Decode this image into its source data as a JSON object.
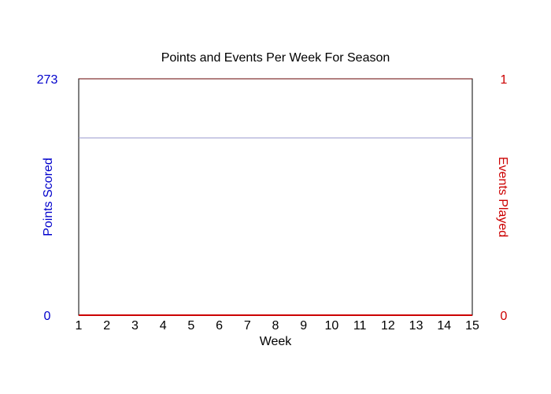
{
  "chart_data": {
    "type": "line",
    "title": "Points and Events Per Week For Season",
    "xlabel": "Week",
    "ylabel_left": "Points Scored",
    "ylabel_right": "Events Played",
    "x": [
      1,
      2,
      3,
      4,
      5,
      6,
      7,
      8,
      9,
      10,
      11,
      12,
      13,
      14,
      15
    ],
    "x_tick_labels": [
      "1",
      "2",
      "3",
      "4",
      "5",
      "6",
      "7",
      "8",
      "9",
      "10",
      "11",
      "12",
      "13",
      "14",
      "15"
    ],
    "ylim_left": [
      0,
      273
    ],
    "ylim_right": [
      0,
      1
    ],
    "y_left_tick_labels": [
      "0",
      "273"
    ],
    "y_right_tick_labels": [
      "0",
      "1"
    ],
    "grid": false,
    "reference_lines": [
      {
        "axis": "left",
        "value": 204.75,
        "color": "#9999cc"
      }
    ],
    "series": [
      {
        "axis": "left",
        "color": "#0000cc",
        "values": [
          0,
          0,
          0,
          0,
          0,
          0,
          0,
          0,
          0,
          0,
          0,
          0,
          0,
          0,
          0
        ]
      },
      {
        "axis": "right",
        "color": "#cc0000",
        "values": [
          0,
          0,
          0,
          0,
          0,
          0,
          0,
          0,
          0,
          0,
          0,
          0,
          0,
          0,
          0
        ]
      }
    ],
    "colors": {
      "left_axis": "#0000cc",
      "right_axis": "#cc0000",
      "frame": "#000000",
      "frame_top": "#660000"
    }
  }
}
